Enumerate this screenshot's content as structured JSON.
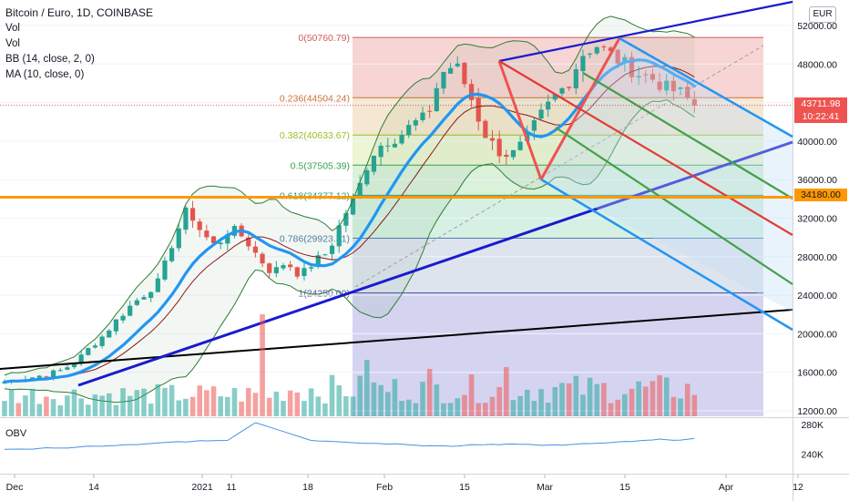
{
  "legend": {
    "title": "Bitcoin / Euro, 1D, COINBASE",
    "vol1": "Vol",
    "vol2": "Vol",
    "bb": "BB (14, close, 2, 0)",
    "ma": "MA (10, close, 0)"
  },
  "obv_label": "OBV",
  "currency": "EUR",
  "price_tags": {
    "current": "43711.98",
    "countdown": "10:22:41",
    "level": "34180.00"
  },
  "colors": {
    "up": "#26a69a",
    "down": "#ef5350",
    "ma": "#2196f3",
    "bb": "#2e7d32",
    "trend": "#1a1acf",
    "orange": "#ff9800",
    "current_bg": "#ef5350"
  },
  "chart_data": [
    {
      "type": "candlestick",
      "title": "Bitcoin / Euro, 1D, COINBASE",
      "y_ticks": [
        12000,
        16000,
        20000,
        24000,
        28000,
        32000,
        36000,
        40000,
        44000,
        48000,
        52000
      ],
      "y_tick_labels": [
        "12000.00",
        "16000.00",
        "20000.00",
        "24000.00",
        "28000.00",
        "32000.00",
        "36000.00",
        "40000.00",
        "44000.00",
        "48000.00",
        "52000.00"
      ],
      "ylim": [
        10800,
        54500
      ],
      "x_ticks": [
        "Dec",
        "14",
        "2021",
        "11",
        "18",
        "Feb",
        "15",
        "Mar",
        "15",
        "Apr",
        "12"
      ],
      "close_path": [
        15000,
        15300,
        15500,
        15800,
        16200,
        17000,
        18500,
        19800,
        21500,
        23000,
        24200,
        25500,
        29800,
        33000,
        30500,
        29000,
        31000,
        30000,
        28000,
        26300,
        27500,
        26000,
        27500,
        28500,
        32000,
        34500,
        38500,
        40000,
        40500,
        41800,
        42500,
        47000,
        48000,
        45000,
        41000,
        39000,
        38500,
        40000,
        42500,
        44500,
        46000,
        49000,
        50000,
        49000,
        48000,
        47000,
        46500,
        45500,
        45000,
        43711.98
      ],
      "current_price": 43711.98,
      "horizontal_level": 34180,
      "fibonacci": [
        {
          "label": "0(50760.79)",
          "price": 50760.79
        },
        {
          "label": "0.236(44504.24)",
          "price": 44504.24
        },
        {
          "label": "0.382(40633.67)",
          "price": 40633.67
        },
        {
          "label": "0.5(37505.39)",
          "price": 37505.39
        },
        {
          "label": "0.618(34377.12)",
          "price": 34377.12
        },
        {
          "label": "0.786(29923.31)",
          "price": 29923.31
        },
        {
          "label": "1(24250.00)",
          "price": 24250
        }
      ]
    },
    {
      "type": "line",
      "title": "OBV",
      "y_tick_labels": [
        "280K",
        "240K"
      ],
      "ylim": [
        220,
        285
      ]
    }
  ]
}
